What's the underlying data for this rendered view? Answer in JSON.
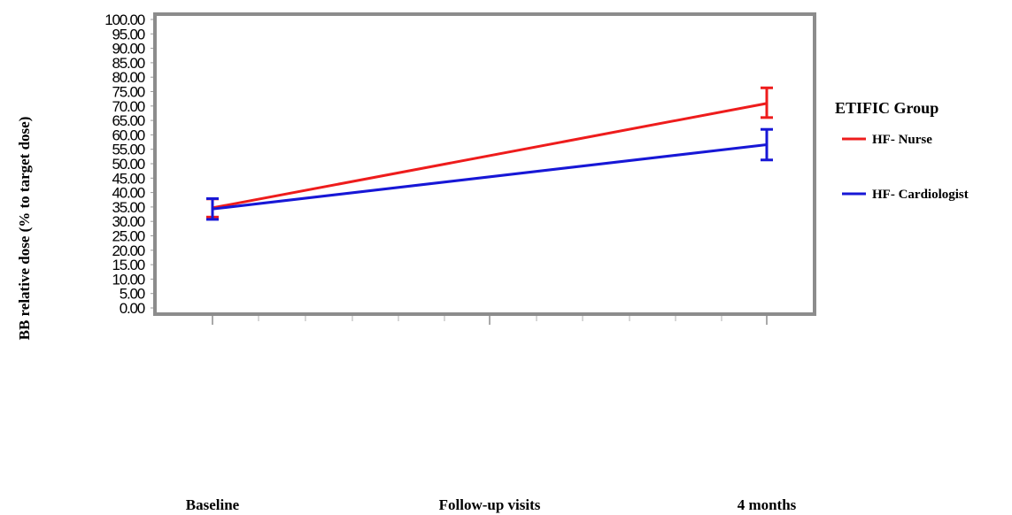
{
  "chart_data": {
    "type": "line",
    "categories": [
      "Baseline",
      "Follow-up visits",
      "4 months"
    ],
    "y_tick_labels": [
      "0.00",
      "5.00",
      "10.00",
      "15.00",
      "20.00",
      "25.00",
      "30.00",
      "35.00",
      "40.00",
      "45.00",
      "50.00",
      "55.00",
      "60.00",
      "65.00",
      "70.00",
      "75.00",
      "80.00",
      "85.00",
      "90.00",
      "95.00",
      "100.00"
    ],
    "ylabel": "BB  relative dose (% to target dose)",
    "ylim": [
      0,
      100
    ],
    "grid": false,
    "legend_position": "right",
    "legend_title": "ETIFIC Group",
    "series": [
      {
        "name": "HF- Nurse",
        "color": "#ee1c1c",
        "points": [
          {
            "x": "Baseline",
            "y": 34.7,
            "low": 31.5,
            "high": 37.8
          },
          {
            "x": "4 months",
            "y": 70.9,
            "low": 66.0,
            "high": 76.3
          }
        ]
      },
      {
        "name": "HF- Cardiologist",
        "color": "#1717d6",
        "points": [
          {
            "x": "Baseline",
            "y": 34.3,
            "low": 30.7,
            "high": 37.9
          },
          {
            "x": "4 months",
            "y": 56.6,
            "low": 51.3,
            "high": 61.9
          }
        ]
      }
    ]
  }
}
